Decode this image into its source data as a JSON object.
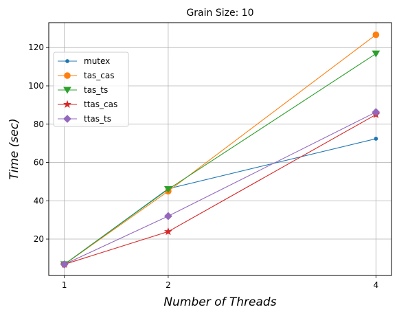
{
  "chart_data": {
    "type": "line",
    "title": "Grain Size: 10",
    "xlabel": "Number of Threads",
    "ylabel": "Time (sec)",
    "x": [
      1,
      2,
      4
    ],
    "xticks": [
      1,
      2,
      4
    ],
    "yticks": [
      20,
      40,
      60,
      80,
      100,
      120
    ],
    "xlim": [
      0.85,
      4.15
    ],
    "ylim": [
      1,
      133
    ],
    "grid": true,
    "legend_position": "upper-left",
    "series": [
      {
        "name": "mutex",
        "values": [
          6.8,
          46.3,
          72.4
        ],
        "color": "#1f77b4",
        "marker": "small-circle"
      },
      {
        "name": "tas_cas",
        "values": [
          6.8,
          45.0,
          126.7
        ],
        "color": "#ff7f0e",
        "marker": "circle"
      },
      {
        "name": "tas_ts",
        "values": [
          6.8,
          46.0,
          116.8
        ],
        "color": "#2ca02c",
        "marker": "triangle-down"
      },
      {
        "name": "ttas_cas",
        "values": [
          6.8,
          23.9,
          85.0
        ],
        "color": "#d62728",
        "marker": "star"
      },
      {
        "name": "ttas_ts",
        "values": [
          6.8,
          32.0,
          86.3
        ],
        "color": "#9467bd",
        "marker": "diamond"
      }
    ]
  }
}
